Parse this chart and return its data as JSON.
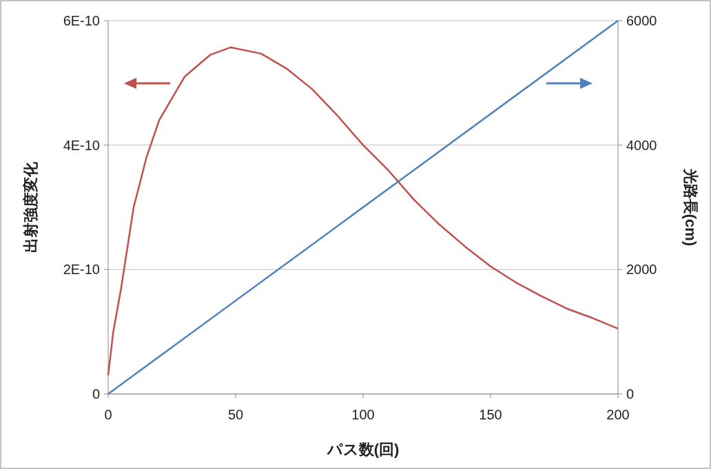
{
  "chart_data": {
    "type": "line",
    "xlabel": "パス数(回)",
    "ylabel": "出射強度変化",
    "y2label": "光路長(cm)",
    "xlim": [
      0,
      200
    ],
    "xticks": [
      0,
      50,
      100,
      150,
      200
    ],
    "ylim": [
      0,
      6e-10
    ],
    "yticks": [
      0,
      {
        "value": 2e-10,
        "label": "2E-10"
      },
      {
        "value": 4e-10,
        "label": "4E-10"
      },
      {
        "value": 6e-10,
        "label": "6E-10"
      }
    ],
    "y2lim": [
      0,
      6000
    ],
    "y2ticks": [
      0,
      2000,
      4000,
      6000
    ],
    "grid": "y",
    "marker": "none",
    "line_style": "solid",
    "series": [
      {
        "color": "#c0504d",
        "x": [
          0,
          2,
          5,
          10,
          15,
          20,
          30,
          40,
          48,
          60,
          70,
          80,
          90,
          100,
          110,
          120,
          130,
          140,
          150,
          160,
          170,
          180,
          190,
          200
        ],
        "values": [
          3e-11,
          1e-10,
          1.68e-10,
          3e-10,
          3.8e-10,
          4.4e-10,
          5.1e-10,
          5.45e-10,
          5.57e-10,
          5.47e-10,
          5.23e-10,
          4.9e-10,
          4.47e-10,
          4e-10,
          3.59e-10,
          3.12e-10,
          2.72e-10,
          2.37e-10,
          2.05e-10,
          1.79e-10,
          1.57e-10,
          1.37e-10,
          1.22e-10,
          1.05e-10
        ]
      },
      {
        "color": "#4f81bd",
        "axis": "y2",
        "x": [
          0,
          200
        ],
        "values": [
          0,
          6000
        ]
      }
    ]
  }
}
